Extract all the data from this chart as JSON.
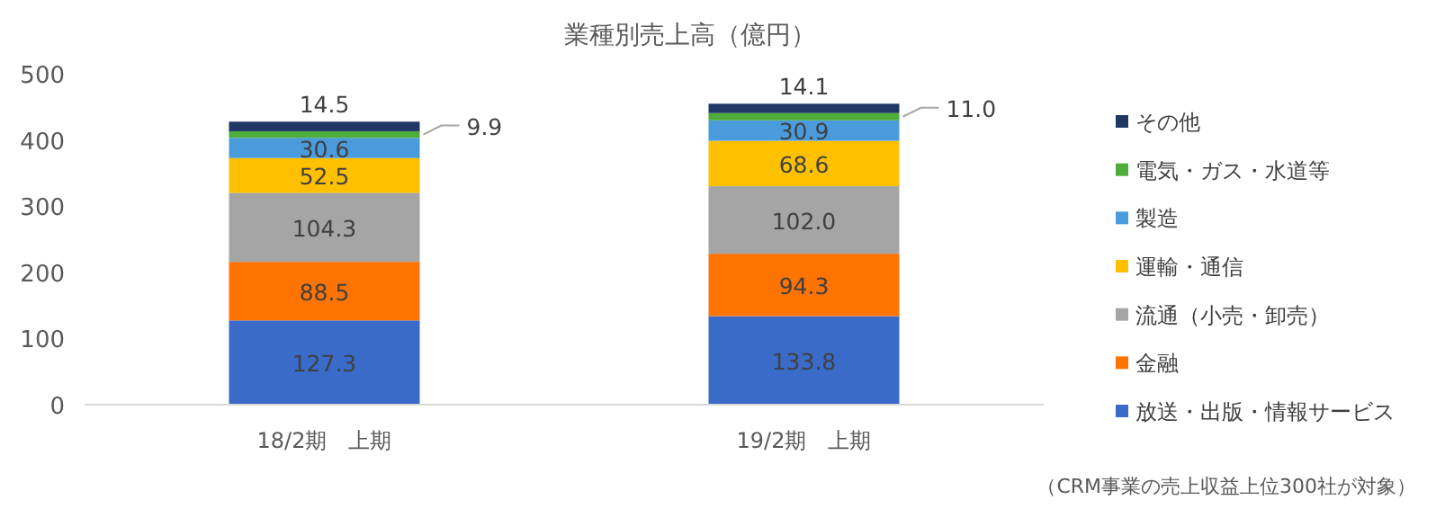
{
  "chart_data": {
    "type": "bar",
    "stacked": true,
    "title": "業種別売上高（億円）",
    "categories": [
      "18/2期　上期",
      "19/2期　上期"
    ],
    "ylim": [
      0,
      500
    ],
    "yticks": [
      0,
      100,
      200,
      300,
      400,
      500
    ],
    "grid": false,
    "legend": "right",
    "series": [
      {
        "name": "放送・出版・情報サービス",
        "color": "#3a6bc9",
        "values": [
          127.3,
          133.8
        ],
        "value_labels": [
          "127.3",
          "133.8"
        ]
      },
      {
        "name": "金融",
        "color": "#ff7300",
        "values": [
          88.5,
          94.3
        ],
        "value_labels": [
          "88.5",
          "94.3"
        ]
      },
      {
        "name": "流通（小売・卸売）",
        "color": "#a5a5a5",
        "values": [
          104.3,
          102.0
        ],
        "value_labels": [
          "104.3",
          "102.0"
        ]
      },
      {
        "name": "運輸・通信",
        "color": "#ffc000",
        "values": [
          52.5,
          68.6
        ],
        "value_labels": [
          "52.5",
          "68.6"
        ]
      },
      {
        "name": "製造",
        "color": "#4a9bdc",
        "values": [
          30.6,
          30.9
        ],
        "value_labels": [
          "30.6",
          "30.9"
        ]
      },
      {
        "name": "電気・ガス・水道等",
        "color": "#4ead3b",
        "values": [
          9.9,
          11.0
        ],
        "value_labels": [
          "9.9",
          "11.0"
        ]
      },
      {
        "name": "その他",
        "color": "#203864",
        "values": [
          14.5,
          14.1
        ],
        "value_labels": [
          "14.5",
          "14.1"
        ]
      }
    ],
    "annotations": [
      "（CRM事業の売上収益上位300社が対象）"
    ]
  }
}
